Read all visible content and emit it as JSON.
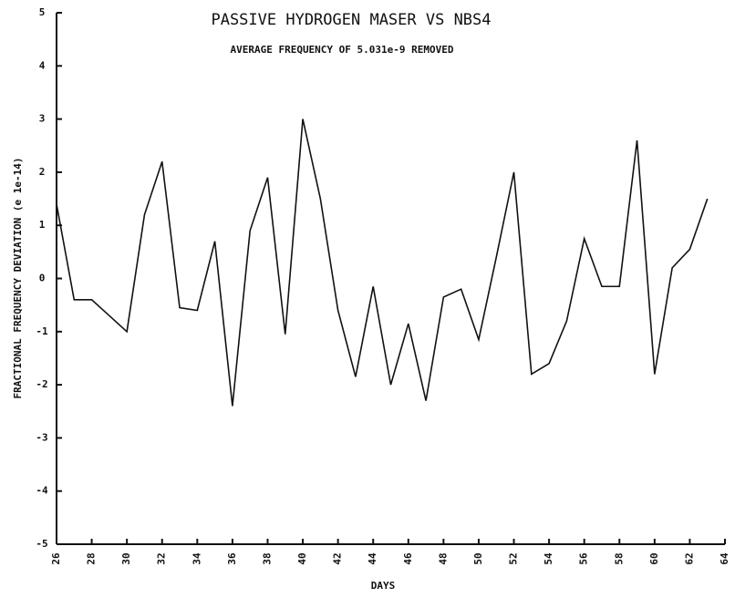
{
  "chart_data": {
    "type": "line",
    "title": "PASSIVE HYDROGEN MASER VS NBS4",
    "subtitle": "AVERAGE FREQUENCY OF 5.031e-9 REMOVED",
    "x_label": "DAYS",
    "y_label": "FRACTIONAL FREQUENCY DEVIATION (e 1e-14)",
    "x": [
      26,
      27,
      28,
      29,
      30,
      31,
      32,
      33,
      34,
      35,
      36,
      37,
      38,
      39,
      40,
      41,
      42,
      43,
      44,
      45,
      46,
      47,
      48,
      49,
      50,
      51,
      52,
      53,
      54,
      55,
      56,
      57,
      58,
      59,
      60,
      61,
      62,
      63
    ],
    "series": [
      {
        "color": "#111111",
        "values": [
          1.4,
          -0.4,
          -0.4,
          -0.7,
          -1.0,
          1.2,
          2.2,
          -0.55,
          -0.6,
          0.7,
          -2.4,
          0.9,
          1.9,
          -1.05,
          3.0,
          1.5,
          -0.6,
          -1.85,
          -0.15,
          -2.0,
          -0.85,
          -2.3,
          -0.35,
          -0.2,
          -1.15,
          0.4,
          2.0,
          -1.8,
          -1.6,
          -0.8,
          0.75,
          -0.15,
          -0.15,
          2.6,
          -1.8,
          0.2,
          0.55,
          1.5
        ]
      }
    ],
    "xlim": [
      26,
      64
    ],
    "xticks": [
      26,
      28,
      30,
      32,
      34,
      36,
      38,
      40,
      42,
      44,
      46,
      48,
      50,
      52,
      54,
      56,
      58,
      60,
      62,
      64
    ],
    "ylim": [
      -5,
      5
    ],
    "yticks": [
      -5,
      -4,
      -3,
      -2,
      -1,
      0,
      1,
      2,
      3,
      4,
      5
    ]
  }
}
